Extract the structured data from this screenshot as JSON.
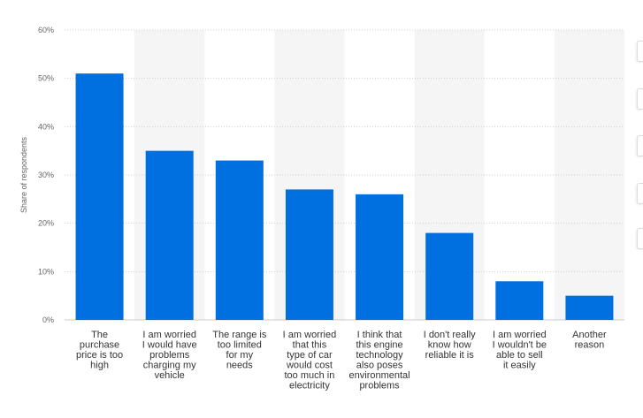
{
  "chart_data": {
    "type": "bar",
    "ylabel": "Share of respondents",
    "xlabel": "",
    "title": "",
    "ylim": [
      0,
      60
    ],
    "yticks": [
      "0%",
      "10%",
      "20%",
      "30%",
      "40%",
      "50%",
      "60%"
    ],
    "grid": true,
    "categories": [
      [
        "The",
        "purchase",
        "price is too",
        "high"
      ],
      [
        "I am worried",
        "I would have",
        "problems",
        "charging my",
        "vehicle"
      ],
      [
        "The range is",
        "too limited",
        "for my",
        "needs"
      ],
      [
        "I am worried",
        "that this",
        "type of car",
        "would cost",
        "too much in",
        "electricity"
      ],
      [
        "I think that",
        "this engine",
        "technology",
        "also poses",
        "environmental",
        "problems"
      ],
      [
        "I don't really",
        "know how",
        "reliable it is"
      ],
      [
        "I am worried",
        "I wouldn't be",
        "able to sell",
        "it easily"
      ],
      [
        "Another",
        "reason"
      ]
    ],
    "values": [
      51,
      35,
      33,
      27,
      26,
      18,
      8,
      5
    ],
    "bar_color": "#0070e0"
  }
}
